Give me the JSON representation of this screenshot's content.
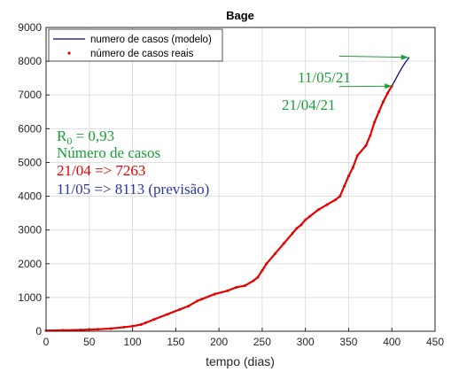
{
  "chart_data": {
    "type": "line",
    "title": "Bage",
    "xlabel": "tempo (dias)",
    "ylabel": "",
    "xlim": [
      0,
      450
    ],
    "ylim": [
      0,
      9000
    ],
    "xticks": [
      0,
      50,
      100,
      150,
      200,
      250,
      300,
      350,
      400,
      450
    ],
    "yticks": [
      0,
      1000,
      2000,
      3000,
      4000,
      5000,
      6000,
      7000,
      8000,
      9000
    ],
    "grid": true,
    "legend_position": "top-left",
    "series": [
      {
        "name": "numero de casos (modelo)",
        "style": "line",
        "color": "#00007f",
        "x": [
          400,
          404,
          408,
          412,
          416,
          420
        ],
        "y": [
          7263,
          7450,
          7640,
          7820,
          7980,
          8113
        ]
      },
      {
        "name": "número de casos reais",
        "style": "points",
        "color": "#e60000",
        "x": [
          0,
          20,
          40,
          60,
          75,
          90,
          100,
          110,
          115,
          125,
          140,
          155,
          165,
          175,
          180,
          195,
          210,
          220,
          230,
          240,
          245,
          250,
          255,
          265,
          275,
          285,
          290,
          295,
          300,
          305,
          315,
          325,
          335,
          340,
          345,
          350,
          355,
          360,
          370,
          375,
          380,
          385,
          390,
          395,
          400
        ],
        "y": [
          20,
          30,
          40,
          60,
          80,
          120,
          150,
          200,
          250,
          350,
          500,
          650,
          750,
          900,
          950,
          1100,
          1200,
          1300,
          1350,
          1500,
          1600,
          1800,
          2000,
          2300,
          2600,
          2900,
          3050,
          3150,
          3300,
          3400,
          3600,
          3750,
          3900,
          4000,
          4300,
          4600,
          4850,
          5200,
          5500,
          5800,
          6200,
          6500,
          6800,
          7050,
          7263
        ]
      }
    ],
    "annotations": {
      "date_upper": "11/05/21",
      "date_lower": "21/04/21",
      "r0_label": "R",
      "r0_sub": "0",
      "r0_value": " = 0,93",
      "cases_title": "Número de casos",
      "line_real": "21/04 => 7263",
      "line_forecast": "11/05 => 8113 (previsão)"
    },
    "arrows": [
      {
        "from": [
          339,
          8150
        ],
        "to": [
          419,
          8113
        ]
      },
      {
        "from": [
          339,
          7250
        ],
        "to": [
          400,
          7263
        ]
      }
    ],
    "colors": {
      "annotation_green": "#1a9e3a",
      "annotation_red": "#e60000",
      "annotation_blue": "#2a35a8",
      "grid": "#dfdfdf",
      "axis": "#262626"
    }
  }
}
